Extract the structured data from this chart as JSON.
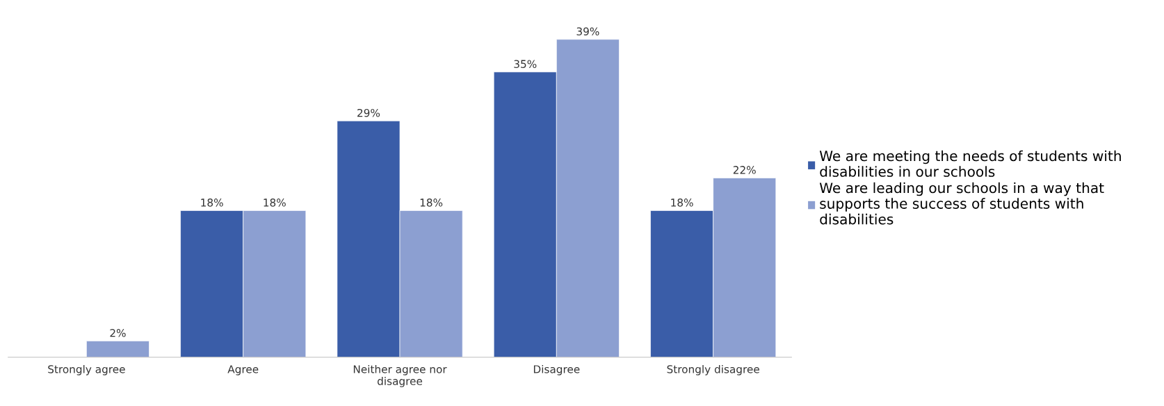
{
  "chart_data": {
    "type": "bar",
    "categories": [
      "Strongly agree",
      "Agree",
      "Neither agree nor\ndisagree",
      "Disagree",
      "Strongly disagree"
    ],
    "series": [
      {
        "name": "We are meeting the needs of students with\ndisabilities in our schools",
        "color": "#3a5da8",
        "values": [
          null,
          18,
          29,
          35,
          18
        ],
        "value_labels": [
          null,
          "18%",
          "29%",
          "35%",
          "18%"
        ]
      },
      {
        "name": "We are leading our schools in a way that\nsupports the success of students with\ndisabilities",
        "color": "#8c9fd1",
        "values": [
          2,
          18,
          18,
          39,
          22
        ],
        "value_labels": [
          "2%",
          "18%",
          "18%",
          "39%",
          "22%"
        ]
      }
    ],
    "legend": "right",
    "grid": false
  }
}
